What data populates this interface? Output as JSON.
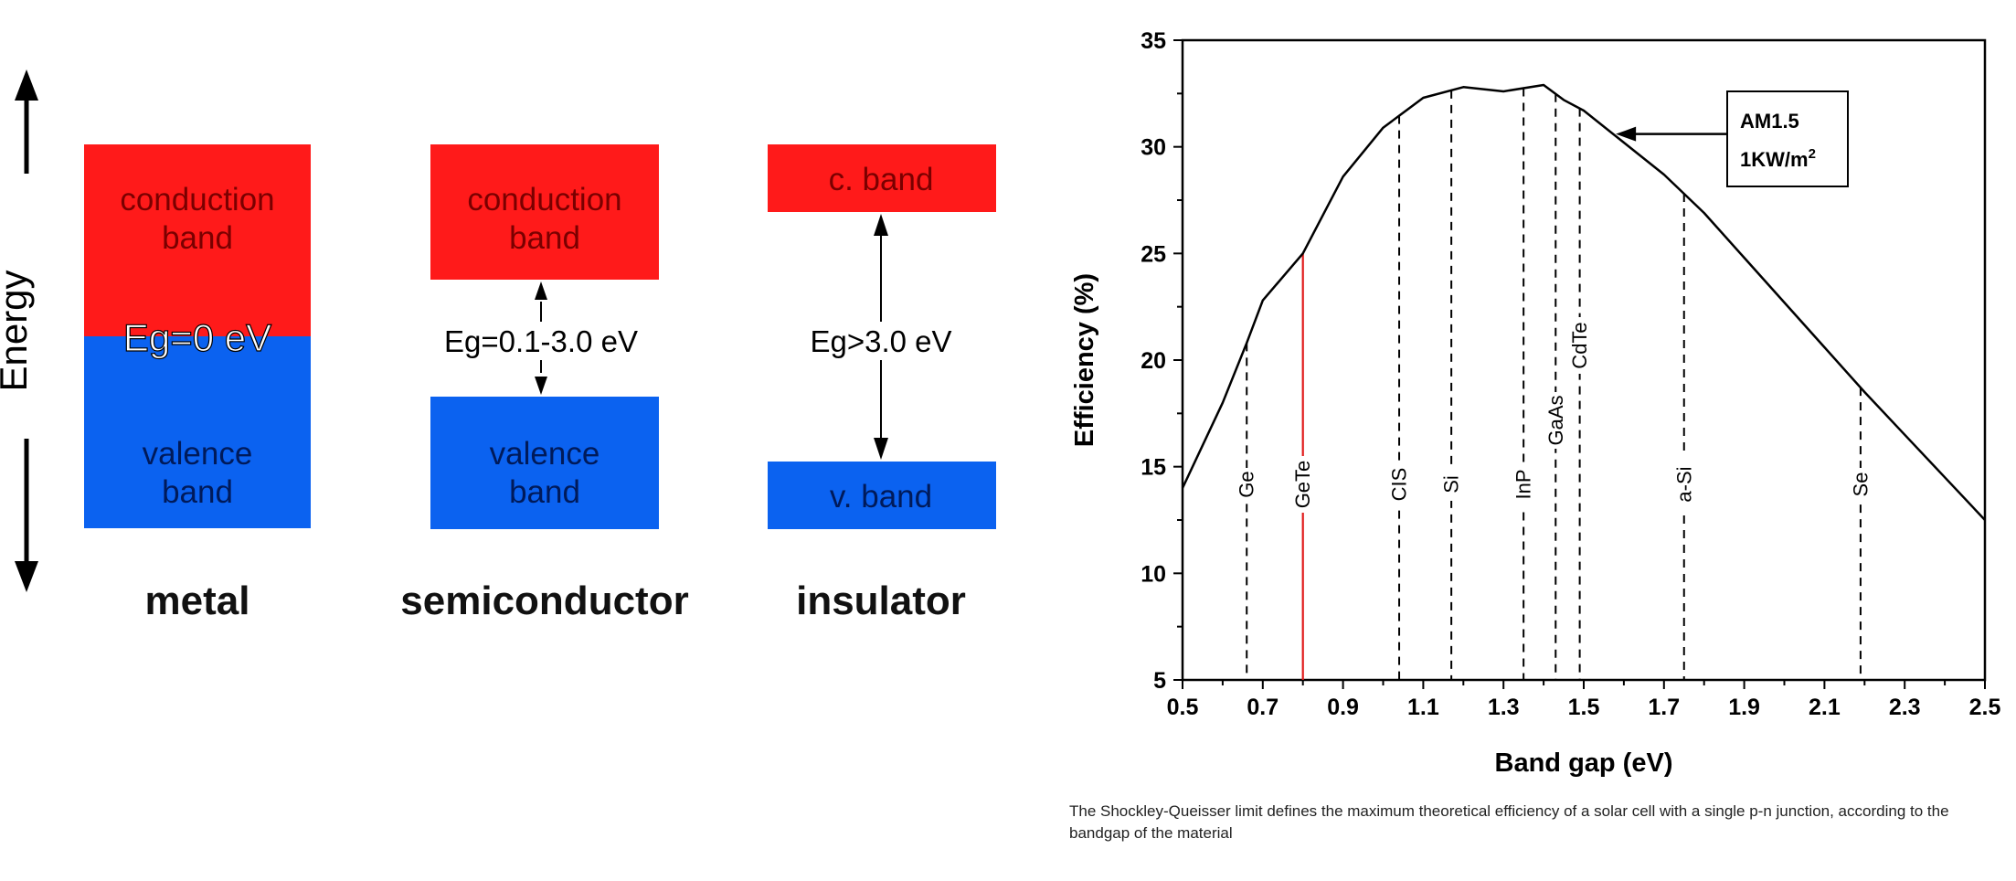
{
  "diagram": {
    "axis_label": "Energy",
    "colors": {
      "conduction": "#ff1a1a",
      "valence": "#0b62f0"
    },
    "metal": {
      "name": "metal",
      "conduction_line1": "conduction",
      "conduction_line2": "band",
      "gap_label": "Eg=0 eV",
      "valence_line1": "valence",
      "valence_line2": "band"
    },
    "semiconductor": {
      "name": "semiconductor",
      "conduction_line1": "conduction",
      "conduction_line2": "band",
      "gap_label": "Eg=0.1-3.0 eV",
      "valence_line1": "valence",
      "valence_line2": "band"
    },
    "insulator": {
      "name": "insulator",
      "conduction_label": "c. band",
      "gap_label": "Eg>3.0 eV",
      "valence_label": "v. band"
    }
  },
  "chart_data": {
    "type": "line",
    "xlabel": "Band gap (eV)",
    "ylabel": "Efficiency (%)",
    "xlim": [
      0.5,
      2.5
    ],
    "ylim": [
      5,
      35
    ],
    "xticks": [
      "0.5",
      "0.7",
      "0.9",
      "1.1",
      "1.3",
      "1.5",
      "1.7",
      "1.9",
      "2.1",
      "2.3",
      "2.5"
    ],
    "yticks": [
      "5",
      "10",
      "15",
      "20",
      "25",
      "30",
      "35"
    ],
    "grid": false,
    "series": [
      {
        "x": [
          0.5,
          0.6,
          0.66,
          0.7,
          0.8,
          0.9,
          1.0,
          1.1,
          1.2,
          1.3,
          1.4,
          1.45,
          1.5,
          1.6,
          1.7,
          1.8,
          1.9,
          2.0,
          2.1,
          2.2,
          2.3,
          2.4,
          2.5
        ],
        "y": [
          14.0,
          18.0,
          20.8,
          22.8,
          25.0,
          28.6,
          30.9,
          32.3,
          32.8,
          32.6,
          32.9,
          32.2,
          31.7,
          30.2,
          28.7,
          26.9,
          24.8,
          22.7,
          20.6,
          18.5,
          16.5,
          14.5,
          12.5
        ]
      }
    ],
    "markers": [
      {
        "label": "Ge",
        "x": 0.66
      },
      {
        "label": "GeTe",
        "x": 0.8
      },
      {
        "label": "CIS",
        "x": 1.04
      },
      {
        "label": "Si",
        "x": 1.17
      },
      {
        "label": "InP",
        "x": 1.35
      },
      {
        "label": "GaAs",
        "x": 1.43
      },
      {
        "label": "CdTe",
        "x": 1.49
      },
      {
        "label": "a-Si",
        "x": 1.75
      },
      {
        "label": "Se",
        "x": 2.19
      }
    ],
    "highlight_color": "#e11a1a",
    "annotation": {
      "line1": "AM1.5",
      "line2_base": "1KW/m",
      "line2_sup": "2"
    }
  },
  "caption": "The Shockley-Queisser limit defines the maximum theoretical efficiency of a solar cell with a single p-n junction, according to the bandgap of the material"
}
